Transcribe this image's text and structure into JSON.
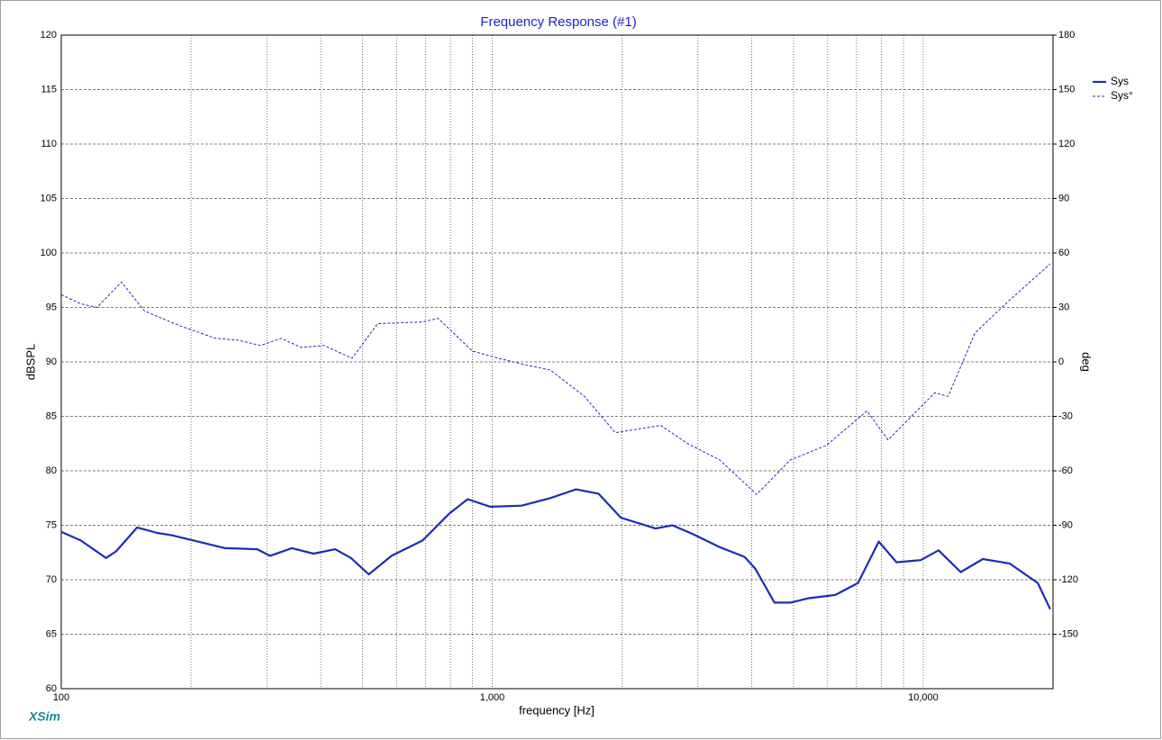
{
  "chart_data": {
    "type": "line",
    "title": "Frequency Response (#1)",
    "xlabel": "frequency [Hz]",
    "ylabel": "dBSPL",
    "y2label": "deg",
    "brand": "XSim",
    "xscale": "log",
    "xlim": [
      100,
      20000
    ],
    "xticks": [
      100,
      {
        "value": 1000,
        "label": "1,000"
      },
      {
        "value": 10000,
        "label": "10,000"
      }
    ],
    "xminorticks": [
      200,
      300,
      400,
      500,
      600,
      700,
      800,
      900,
      2000,
      3000,
      4000,
      5000,
      6000,
      7000,
      8000,
      9000
    ],
    "ylim": [
      60,
      120
    ],
    "yticks": [
      60,
      65,
      70,
      75,
      80,
      85,
      90,
      95,
      100,
      105,
      110,
      115,
      120
    ],
    "y2lim": [
      -180,
      180
    ],
    "y2ticks": [
      -150,
      -120,
      -90,
      -60,
      -30,
      0,
      30,
      60,
      90,
      120,
      150,
      180
    ],
    "grid": true,
    "legend": "top-right",
    "series": [
      {
        "name": "Sys",
        "color": "#1c2db4",
        "dash": false,
        "x": [
          100,
          111,
          127,
          134,
          150,
          167,
          180,
          203,
          240,
          285,
          305,
          343,
          385,
          432,
          470,
          517,
          584,
          689,
          796,
          877,
          990,
          1170,
          1364,
          1564,
          1765,
          1987,
          2393,
          2618,
          2920,
          3370,
          3850,
          4078,
          4516,
          4915,
          5405,
          6249,
          7055,
          7885,
          8670,
          9870,
          10850,
          12220,
          13750,
          15860,
          18440,
          19700
        ],
        "values": [
          74.4,
          73.6,
          72.0,
          72.6,
          74.8,
          74.3,
          74.1,
          73.6,
          72.9,
          72.8,
          72.2,
          72.9,
          72.4,
          72.8,
          72.0,
          70.5,
          72.2,
          73.6,
          76.1,
          77.4,
          76.7,
          76.8,
          77.5,
          78.3,
          77.9,
          75.7,
          74.7,
          75.0,
          74.2,
          73.0,
          72.1,
          71.0,
          67.9,
          67.9,
          68.3,
          68.6,
          69.7,
          73.5,
          71.6,
          71.8,
          72.7,
          70.7,
          71.9,
          71.5,
          69.7,
          67.3
        ]
      },
      {
        "name": "Sys°",
        "color": "#1c2db4",
        "dash": true,
        "axis": "y2",
        "x": [
          100,
          111,
          121,
          138,
          156,
          188,
          228,
          257,
          290,
          324,
          360,
          407,
          473,
          542,
          689,
          749,
          899,
          1034,
          1188,
          1364,
          1636,
          1930,
          2458,
          2843,
          3370,
          4107,
          4915,
          5956,
          7405,
          8285,
          10630,
          11420,
          13190,
          15860,
          19700
        ],
        "values": [
          37,
          32,
          30,
          44,
          28,
          20,
          13,
          12,
          9,
          13,
          8,
          9,
          2,
          21,
          22,
          24,
          6,
          2,
          -1.5,
          -4.5,
          -19,
          -39,
          -35,
          -45,
          -54,
          -73,
          -54,
          -46,
          -27,
          -43,
          -17,
          -19,
          16,
          34,
          54
        ]
      }
    ]
  }
}
